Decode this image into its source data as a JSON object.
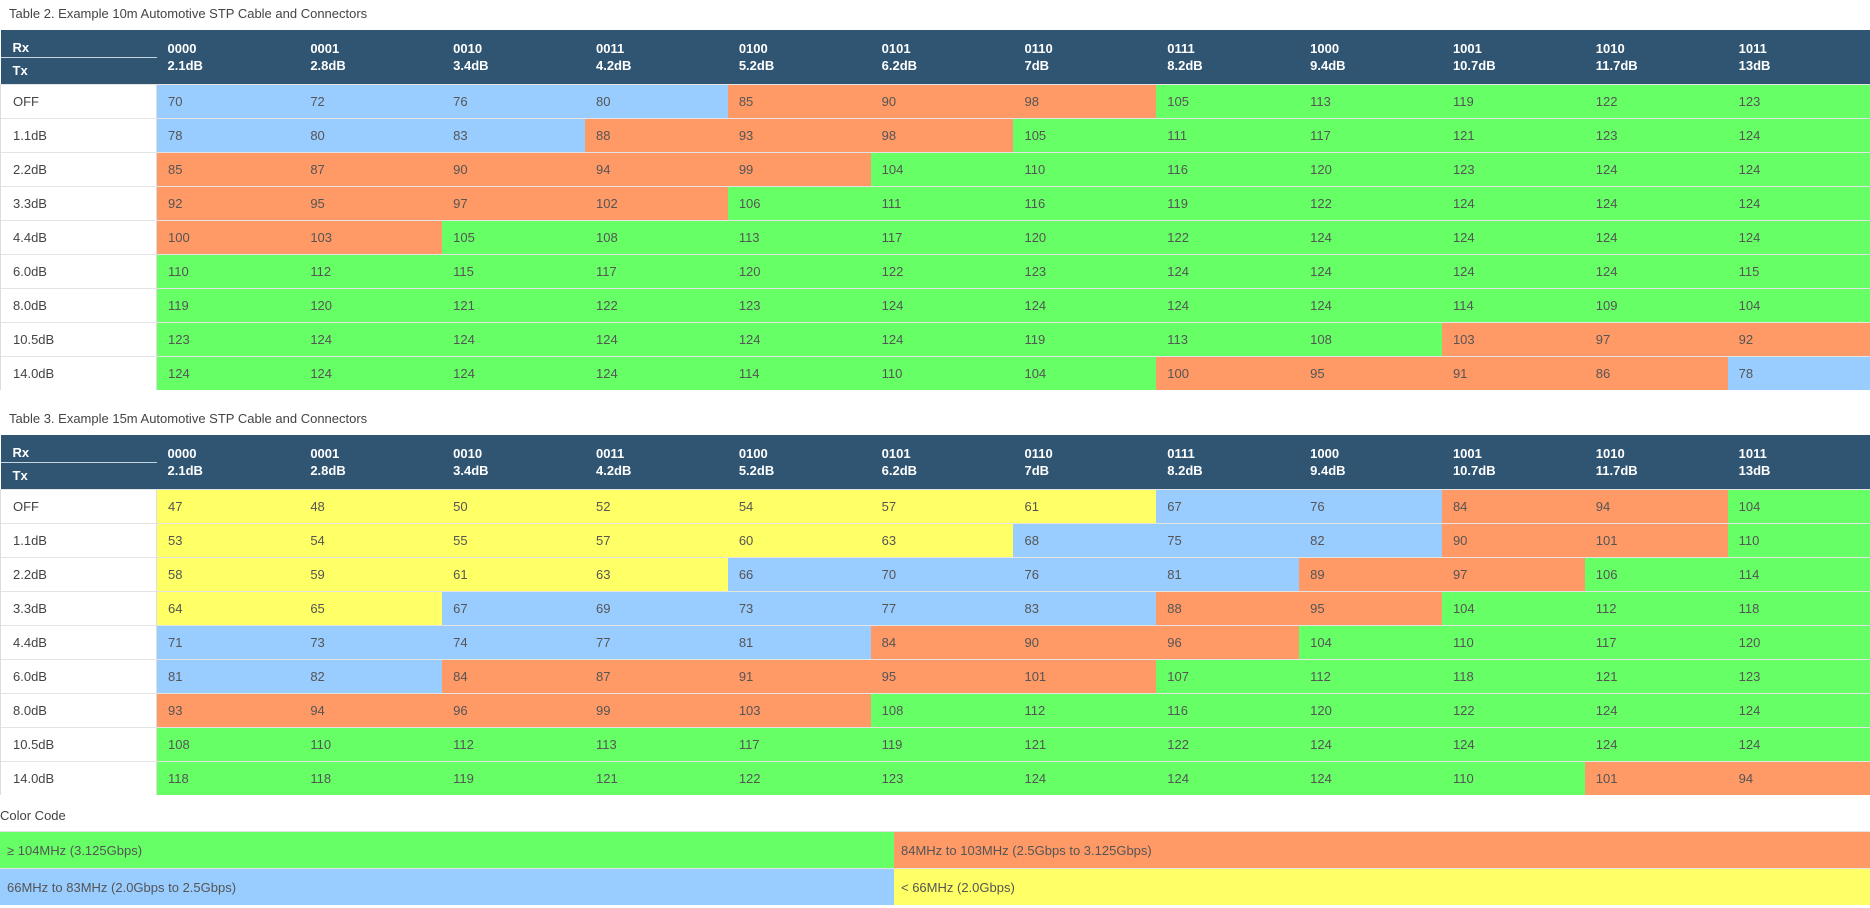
{
  "colors": {
    "green": "#66ff66",
    "orange": "#ff9966",
    "blue": "#99ccff",
    "yellow": "#ffff66",
    "header": "#2f5573"
  },
  "header": {
    "rx_label": "Rx",
    "tx_label": "Tx",
    "columns": [
      {
        "code": "0000",
        "db": "2.1dB"
      },
      {
        "code": "0001",
        "db": "2.8dB"
      },
      {
        "code": "0010",
        "db": "3.4dB"
      },
      {
        "code": "0011",
        "db": "4.2dB"
      },
      {
        "code": "0100",
        "db": "5.2dB"
      },
      {
        "code": "0101",
        "db": "6.2dB"
      },
      {
        "code": "0110",
        "db": "7dB"
      },
      {
        "code": "0111",
        "db": "8.2dB"
      },
      {
        "code": "1000",
        "db": "9.4dB"
      },
      {
        "code": "1001",
        "db": "10.7dB"
      },
      {
        "code": "1010",
        "db": "11.7dB"
      },
      {
        "code": "1011",
        "db": "13dB"
      }
    ]
  },
  "tables": [
    {
      "caption": "Table 2. Example 10m Automotive STP Cable and Connectors",
      "rows": [
        {
          "tx": "OFF",
          "values": [
            70,
            72,
            76,
            80,
            85,
            90,
            98,
            105,
            113,
            119,
            122,
            123
          ],
          "colors": [
            "b",
            "b",
            "b",
            "b",
            "o",
            "o",
            "o",
            "g",
            "g",
            "g",
            "g",
            "g"
          ]
        },
        {
          "tx": "1.1dB",
          "values": [
            78,
            80,
            83,
            88,
            93,
            98,
            105,
            111,
            117,
            121,
            123,
            124
          ],
          "colors": [
            "b",
            "b",
            "b",
            "o",
            "o",
            "o",
            "g",
            "g",
            "g",
            "g",
            "g",
            "g"
          ]
        },
        {
          "tx": "2.2dB",
          "values": [
            85,
            87,
            90,
            94,
            99,
            104,
            110,
            116,
            120,
            123,
            124,
            124
          ],
          "colors": [
            "o",
            "o",
            "o",
            "o",
            "o",
            "g",
            "g",
            "g",
            "g",
            "g",
            "g",
            "g"
          ]
        },
        {
          "tx": "3.3dB",
          "values": [
            92,
            95,
            97,
            102,
            106,
            111,
            116,
            119,
            122,
            124,
            124,
            124
          ],
          "colors": [
            "o",
            "o",
            "o",
            "o",
            "g",
            "g",
            "g",
            "g",
            "g",
            "g",
            "g",
            "g"
          ]
        },
        {
          "tx": "4.4dB",
          "values": [
            100,
            103,
            105,
            108,
            113,
            117,
            120,
            122,
            124,
            124,
            124,
            124
          ],
          "colors": [
            "o",
            "o",
            "g",
            "g",
            "g",
            "g",
            "g",
            "g",
            "g",
            "g",
            "g",
            "g"
          ]
        },
        {
          "tx": "6.0dB",
          "values": [
            110,
            112,
            115,
            117,
            120,
            122,
            123,
            124,
            124,
            124,
            124,
            115
          ],
          "colors": [
            "g",
            "g",
            "g",
            "g",
            "g",
            "g",
            "g",
            "g",
            "g",
            "g",
            "g",
            "g"
          ]
        },
        {
          "tx": "8.0dB",
          "values": [
            119,
            120,
            121,
            122,
            123,
            124,
            124,
            124,
            124,
            114,
            109,
            104
          ],
          "colors": [
            "g",
            "g",
            "g",
            "g",
            "g",
            "g",
            "g",
            "g",
            "g",
            "g",
            "g",
            "g"
          ]
        },
        {
          "tx": "10.5dB",
          "values": [
            123,
            124,
            124,
            124,
            124,
            124,
            119,
            113,
            108,
            103,
            97,
            92
          ],
          "colors": [
            "g",
            "g",
            "g",
            "g",
            "g",
            "g",
            "g",
            "g",
            "g",
            "o",
            "o",
            "o"
          ]
        },
        {
          "tx": "14.0dB",
          "values": [
            124,
            124,
            124,
            124,
            114,
            110,
            104,
            100,
            95,
            91,
            86,
            78
          ],
          "colors": [
            "g",
            "g",
            "g",
            "g",
            "g",
            "g",
            "g",
            "o",
            "o",
            "o",
            "o",
            "b"
          ]
        }
      ]
    },
    {
      "caption": "Table 3. Example 15m Automotive STP Cable and Connectors",
      "rows": [
        {
          "tx": "OFF",
          "values": [
            47,
            48,
            50,
            52,
            54,
            57,
            61,
            67,
            76,
            84,
            94,
            104
          ],
          "colors": [
            "y",
            "y",
            "y",
            "y",
            "y",
            "y",
            "y",
            "b",
            "b",
            "o",
            "o",
            "g"
          ]
        },
        {
          "tx": "1.1dB",
          "values": [
            53,
            54,
            55,
            57,
            60,
            63,
            68,
            75,
            82,
            90,
            101,
            110
          ],
          "colors": [
            "y",
            "y",
            "y",
            "y",
            "y",
            "y",
            "b",
            "b",
            "b",
            "o",
            "o",
            "g"
          ]
        },
        {
          "tx": "2.2dB",
          "values": [
            58,
            59,
            61,
            63,
            66,
            70,
            76,
            81,
            89,
            97,
            106,
            114
          ],
          "colors": [
            "y",
            "y",
            "y",
            "y",
            "b",
            "b",
            "b",
            "b",
            "o",
            "o",
            "g",
            "g"
          ]
        },
        {
          "tx": "3.3dB",
          "values": [
            64,
            65,
            67,
            69,
            73,
            77,
            83,
            88,
            95,
            104,
            112,
            118
          ],
          "colors": [
            "y",
            "y",
            "b",
            "b",
            "b",
            "b",
            "b",
            "o",
            "o",
            "g",
            "g",
            "g"
          ]
        },
        {
          "tx": "4.4dB",
          "values": [
            71,
            73,
            74,
            77,
            81,
            84,
            90,
            96,
            104,
            110,
            117,
            120
          ],
          "colors": [
            "b",
            "b",
            "b",
            "b",
            "b",
            "o",
            "o",
            "o",
            "g",
            "g",
            "g",
            "g"
          ]
        },
        {
          "tx": "6.0dB",
          "values": [
            81,
            82,
            84,
            87,
            91,
            95,
            101,
            107,
            112,
            118,
            121,
            123
          ],
          "colors": [
            "b",
            "b",
            "o",
            "o",
            "o",
            "o",
            "o",
            "g",
            "g",
            "g",
            "g",
            "g"
          ]
        },
        {
          "tx": "8.0dB",
          "values": [
            93,
            94,
            96,
            99,
            103,
            108,
            112,
            116,
            120,
            122,
            124,
            124
          ],
          "colors": [
            "o",
            "o",
            "o",
            "o",
            "o",
            "g",
            "g",
            "g",
            "g",
            "g",
            "g",
            "g"
          ]
        },
        {
          "tx": "10.5dB",
          "values": [
            108,
            110,
            112,
            113,
            117,
            119,
            121,
            122,
            124,
            124,
            124,
            124
          ],
          "colors": [
            "g",
            "g",
            "g",
            "g",
            "g",
            "g",
            "g",
            "g",
            "g",
            "g",
            "g",
            "g"
          ]
        },
        {
          "tx": "14.0dB",
          "values": [
            118,
            118,
            119,
            121,
            122,
            123,
            124,
            124,
            124,
            110,
            101,
            94
          ],
          "colors": [
            "g",
            "g",
            "g",
            "g",
            "g",
            "g",
            "g",
            "g",
            "g",
            "g",
            "o",
            "o"
          ]
        }
      ]
    }
  ],
  "legend": {
    "title": "Color Code",
    "items": [
      {
        "label": "≥ 104MHz (3.125Gbps)",
        "color": "g"
      },
      {
        "label": "84MHz to 103MHz (2.5Gbps to 3.125Gbps)",
        "color": "o"
      },
      {
        "label": "66MHz to 83MHz (2.0Gbps to 2.5Gbps)",
        "color": "b"
      },
      {
        "label": "< 66MHz (2.0Gbps)",
        "color": "y"
      }
    ]
  }
}
